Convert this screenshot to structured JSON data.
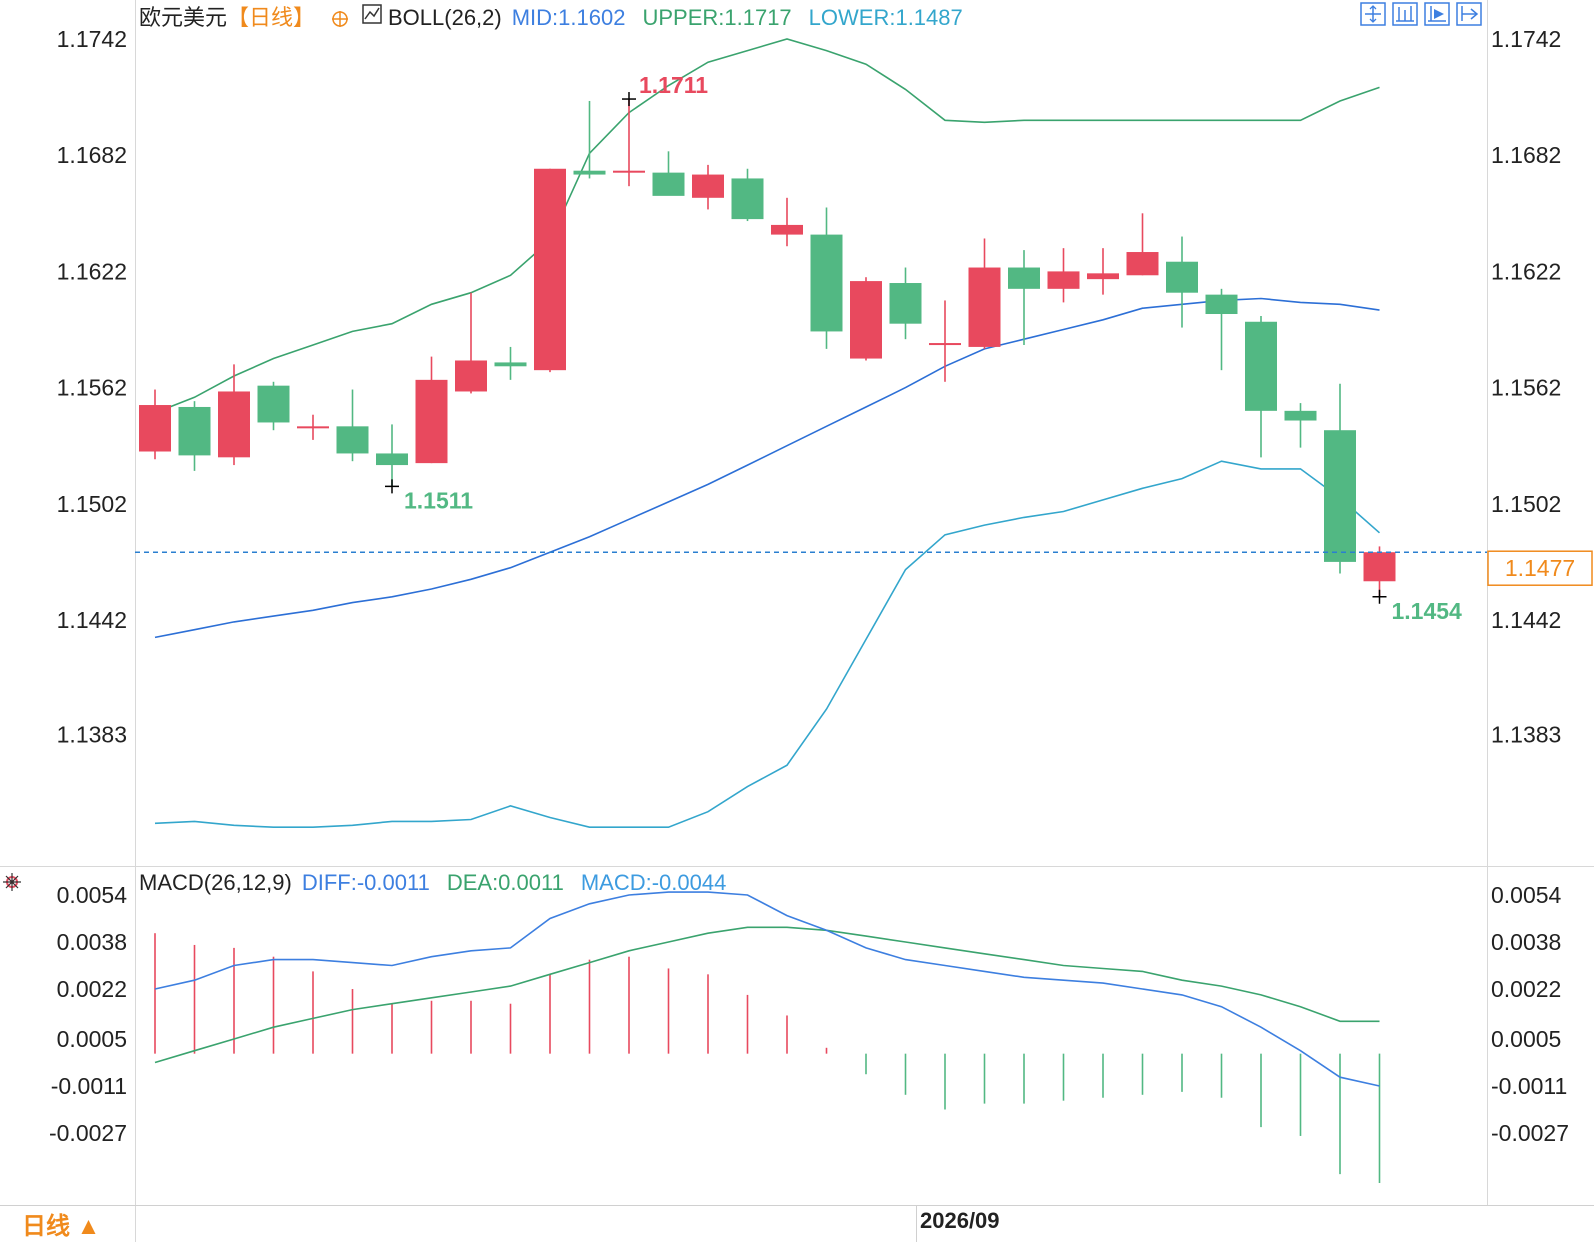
{
  "header": {
    "pair": "欧元美元",
    "period": "【日线】",
    "indicator": "BOLL(26,2)",
    "mid": "MID:1.1602",
    "upper": "UPPER:1.1717",
    "lower": "LOWER:1.1487"
  },
  "macd_header": {
    "indicator": "MACD(26,12,9)",
    "diff": "DIFF:-0.0011",
    "dea": "DEA:0.0011",
    "macd": "MACD:-0.0044"
  },
  "footer": {
    "period_button": "日线 ▲",
    "x_label": "2026/09"
  },
  "annotations": {
    "high": "1.1711",
    "low_left": "1.1511",
    "low_right": "1.1454",
    "current_price": "1.1477"
  },
  "icons": [
    "crosshair-icon",
    "candlestick-icon",
    "zoom-in-icon",
    "scroll-right-icon",
    "settings-icon",
    "reset-icon"
  ],
  "colors": {
    "up": "#e8495e",
    "down": "#52b883",
    "upper_band": "#3aa36e",
    "lower_band": "#33a6cc",
    "mid_band": "#2c6fd6",
    "diff": "#3d7fe0",
    "dea": "#3aa36e",
    "price_line": "#2a7fd0",
    "current_price": "#f08a1c"
  },
  "chart_data": [
    {
      "type": "candlestick",
      "title": "欧元美元【日线】",
      "y_ticks": [
        "1.1742",
        "1.1682",
        "1.1622",
        "1.1562",
        "1.1502",
        "1.1442",
        "1.1383"
      ],
      "ylim": [
        1.133,
        1.1745
      ],
      "candles": [
        {
          "open": 1.1529,
          "high": 1.1561,
          "low": 1.1525,
          "close": 1.1553
        },
        {
          "open": 1.1552,
          "high": 1.1555,
          "low": 1.1519,
          "close": 1.1527
        },
        {
          "open": 1.1526,
          "high": 1.1574,
          "low": 1.1522,
          "close": 1.156
        },
        {
          "open": 1.1563,
          "high": 1.1565,
          "low": 1.154,
          "close": 1.1544
        },
        {
          "open": 1.1542,
          "high": 1.1548,
          "low": 1.1535,
          "close": 1.1542
        },
        {
          "open": 1.1542,
          "high": 1.1561,
          "low": 1.1524,
          "close": 1.1528
        },
        {
          "open": 1.1528,
          "high": 1.1543,
          "low": 1.1511,
          "close": 1.1522
        },
        {
          "open": 1.1523,
          "high": 1.1578,
          "low": 1.1523,
          "close": 1.1566
        },
        {
          "open": 1.156,
          "high": 1.1611,
          "low": 1.1559,
          "close": 1.1576
        },
        {
          "open": 1.1575,
          "high": 1.1583,
          "low": 1.1566,
          "close": 1.1573
        },
        {
          "open": 1.1571,
          "high": 1.1675,
          "low": 1.157,
          "close": 1.1675
        },
        {
          "open": 1.1674,
          "high": 1.171,
          "low": 1.167,
          "close": 1.1672
        },
        {
          "open": 1.1674,
          "high": 1.1711,
          "low": 1.1666,
          "close": 1.1674
        },
        {
          "open": 1.1673,
          "high": 1.1684,
          "low": 1.1662,
          "close": 1.1661
        },
        {
          "open": 1.166,
          "high": 1.1677,
          "low": 1.1654,
          "close": 1.1672
        },
        {
          "open": 1.167,
          "high": 1.1675,
          "low": 1.1648,
          "close": 1.1649
        },
        {
          "open": 1.1641,
          "high": 1.166,
          "low": 1.1635,
          "close": 1.1646
        },
        {
          "open": 1.1641,
          "high": 1.1655,
          "low": 1.1582,
          "close": 1.1591
        },
        {
          "open": 1.1577,
          "high": 1.1619,
          "low": 1.1576,
          "close": 1.1617
        },
        {
          "open": 1.1616,
          "high": 1.1624,
          "low": 1.1587,
          "close": 1.1595
        },
        {
          "open": 1.1585,
          "high": 1.1607,
          "low": 1.1565,
          "close": 1.1585
        },
        {
          "open": 1.1583,
          "high": 1.1639,
          "low": 1.1582,
          "close": 1.1624
        },
        {
          "open": 1.1624,
          "high": 1.1633,
          "low": 1.1584,
          "close": 1.1613
        },
        {
          "open": 1.1613,
          "high": 1.1634,
          "low": 1.1606,
          "close": 1.1622
        },
        {
          "open": 1.1618,
          "high": 1.1634,
          "low": 1.161,
          "close": 1.1621
        },
        {
          "open": 1.162,
          "high": 1.1652,
          "low": 1.162,
          "close": 1.1632
        },
        {
          "open": 1.1627,
          "high": 1.164,
          "low": 1.1593,
          "close": 1.1611
        },
        {
          "open": 1.161,
          "high": 1.1613,
          "low": 1.1571,
          "close": 1.16
        },
        {
          "open": 1.1596,
          "high": 1.1599,
          "low": 1.1526,
          "close": 1.155
        },
        {
          "open": 1.155,
          "high": 1.1554,
          "low": 1.1531,
          "close": 1.1545
        },
        {
          "open": 1.154,
          "high": 1.1564,
          "low": 1.1466,
          "close": 1.1472
        },
        {
          "open": 1.1462,
          "high": 1.148,
          "low": 1.1454,
          "close": 1.1477
        }
      ],
      "boll_upper": [
        1.1549,
        1.1557,
        1.1568,
        1.1577,
        1.1584,
        1.1591,
        1.1595,
        1.1605,
        1.1611,
        1.162,
        1.1638,
        1.1683,
        1.1704,
        1.1718,
        1.173,
        1.1736,
        1.1742,
        1.1736,
        1.1729,
        1.1716,
        1.17,
        1.1699,
        1.17,
        1.17,
        1.17,
        1.17,
        1.17,
        1.17,
        1.17,
        1.17,
        1.171,
        1.1717
      ],
      "boll_mid": [
        1.1433,
        1.1437,
        1.1441,
        1.1444,
        1.1447,
        1.1451,
        1.1454,
        1.1458,
        1.1463,
        1.1469,
        1.1477,
        1.1485,
        1.1494,
        1.1503,
        1.1512,
        1.1522,
        1.1532,
        1.1542,
        1.1552,
        1.1562,
        1.1573,
        1.1582,
        1.1587,
        1.1592,
        1.1597,
        1.1603,
        1.1605,
        1.1607,
        1.1608,
        1.1606,
        1.1605,
        1.1602
      ],
      "boll_lower": [
        1.1337,
        1.1338,
        1.1336,
        1.1335,
        1.1335,
        1.1336,
        1.1338,
        1.1338,
        1.1339,
        1.1346,
        1.134,
        1.1335,
        1.1335,
        1.1335,
        1.1343,
        1.1356,
        1.1367,
        1.1396,
        1.1432,
        1.1468,
        1.1486,
        1.1491,
        1.1495,
        1.1498,
        1.1504,
        1.151,
        1.1515,
        1.1524,
        1.152,
        1.152,
        1.1505,
        1.1487
      ],
      "current_price": 1.1477
    },
    {
      "type": "macd",
      "title": "MACD(26,12,9)",
      "y_ticks": [
        "0.0054",
        "0.0038",
        "0.0022",
        "0.0005",
        "-0.0011",
        "-0.0027"
      ],
      "ylim": [
        -0.0053,
        0.007
      ],
      "x_label": "2026/09",
      "series": [
        {
          "name": "DIFF",
          "values": [
            0.0022,
            0.0025,
            0.003,
            0.0032,
            0.0032,
            0.0031,
            0.003,
            0.0033,
            0.0035,
            0.0036,
            0.0046,
            0.0051,
            0.0054,
            0.0055,
            0.0055,
            0.0054,
            0.0047,
            0.0042,
            0.0036,
            0.0032,
            0.003,
            0.0028,
            0.0026,
            0.0025,
            0.0024,
            0.0022,
            0.002,
            0.0016,
            0.0009,
            0.0001,
            -0.0008,
            -0.0011
          ]
        },
        {
          "name": "DEA",
          "values": [
            -0.0003,
            0.0001,
            0.0005,
            0.0009,
            0.0012,
            0.0015,
            0.0017,
            0.0019,
            0.0021,
            0.0023,
            0.0027,
            0.0031,
            0.0035,
            0.0038,
            0.0041,
            0.0043,
            0.0043,
            0.0042,
            0.004,
            0.0038,
            0.0036,
            0.0034,
            0.0032,
            0.003,
            0.0029,
            0.0028,
            0.0025,
            0.0023,
            0.002,
            0.0016,
            0.0011,
            0.0011
          ]
        },
        {
          "name": "MACD",
          "values": [
            0.0041,
            0.0037,
            0.0036,
            0.0033,
            0.0028,
            0.0022,
            0.0017,
            0.0018,
            0.0018,
            0.0017,
            0.0027,
            0.0032,
            0.0033,
            0.0029,
            0.0027,
            0.002,
            0.0013,
            0.0002,
            -0.0007,
            -0.0014,
            -0.0019,
            -0.0017,
            -0.0017,
            -0.0016,
            -0.0015,
            -0.0014,
            -0.0013,
            -0.0015,
            -0.0025,
            -0.0028,
            -0.0041,
            -0.0044
          ]
        }
      ]
    }
  ]
}
